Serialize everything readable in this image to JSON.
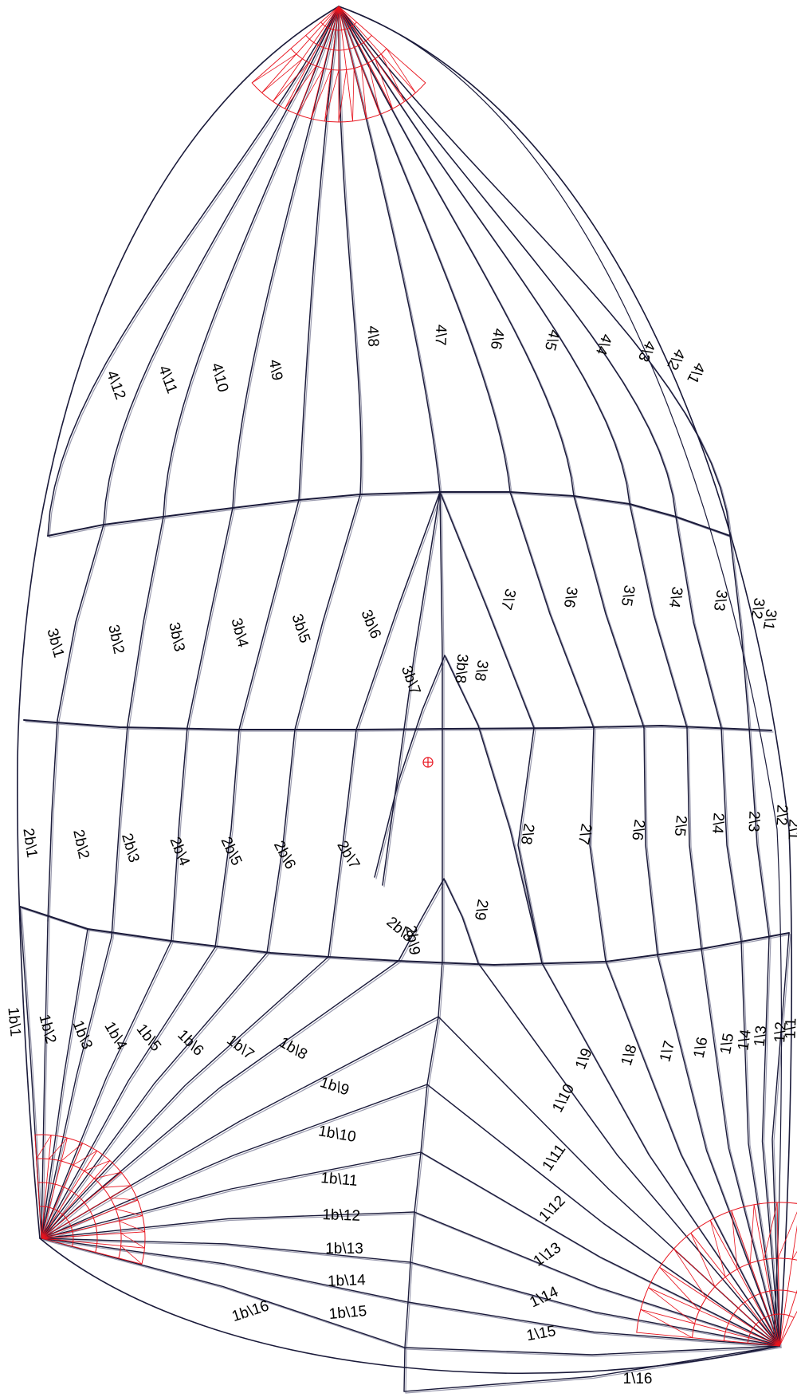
{
  "colors": {
    "seam": "#1a1a3a",
    "seam_shadow": "#9a9aae",
    "reinforcement": "#e8141e",
    "label": "#000000"
  },
  "labels": {
    "p4": [
      "4\\12",
      "4\\11",
      "4\\10",
      "4\\9",
      "4\\8",
      "4\\7",
      "4\\6",
      "4\\5",
      "4\\4",
      "4\\3",
      "4\\2",
      "4\\1"
    ],
    "p3": [
      "3\\7",
      "3\\6",
      "3\\5",
      "3\\4",
      "3\\3",
      "3\\2",
      "3\\1",
      "3\\8"
    ],
    "p3b": [
      "3b\\1",
      "3b\\2",
      "3b\\3",
      "3b\\4",
      "3b\\5",
      "3b\\6",
      "3b\\7",
      "3b\\8"
    ],
    "p2": [
      "2\\8",
      "2\\7",
      "2\\6",
      "2\\5",
      "2\\4",
      "2\\3",
      "2\\2",
      "2\\1",
      "2\\9"
    ],
    "p2b": [
      "2b\\1",
      "2b\\2",
      "2b\\3",
      "2b\\4",
      "2b\\5",
      "2b\\6",
      "2b\\7",
      "2b\\8",
      "2b\\9"
    ],
    "p1": [
      "1\\16",
      "1\\15",
      "1\\14",
      "1\\13",
      "1\\12",
      "1\\11",
      "1\\10",
      "1\\9",
      "1\\8",
      "1\\7",
      "1\\6",
      "1\\5",
      "1\\4",
      "1\\3",
      "1\\2",
      "1\\1"
    ],
    "p1b": [
      "1b\\1",
      "1b\\2",
      "1b\\3",
      "1b\\4",
      "1b\\5",
      "1b\\6",
      "1b\\7",
      "1b\\8",
      "1b\\9",
      "1b\\10",
      "1b\\11",
      "1b\\12",
      "1b\\13",
      "1b\\14",
      "1b\\15",
      "1b\\16"
    ]
  }
}
